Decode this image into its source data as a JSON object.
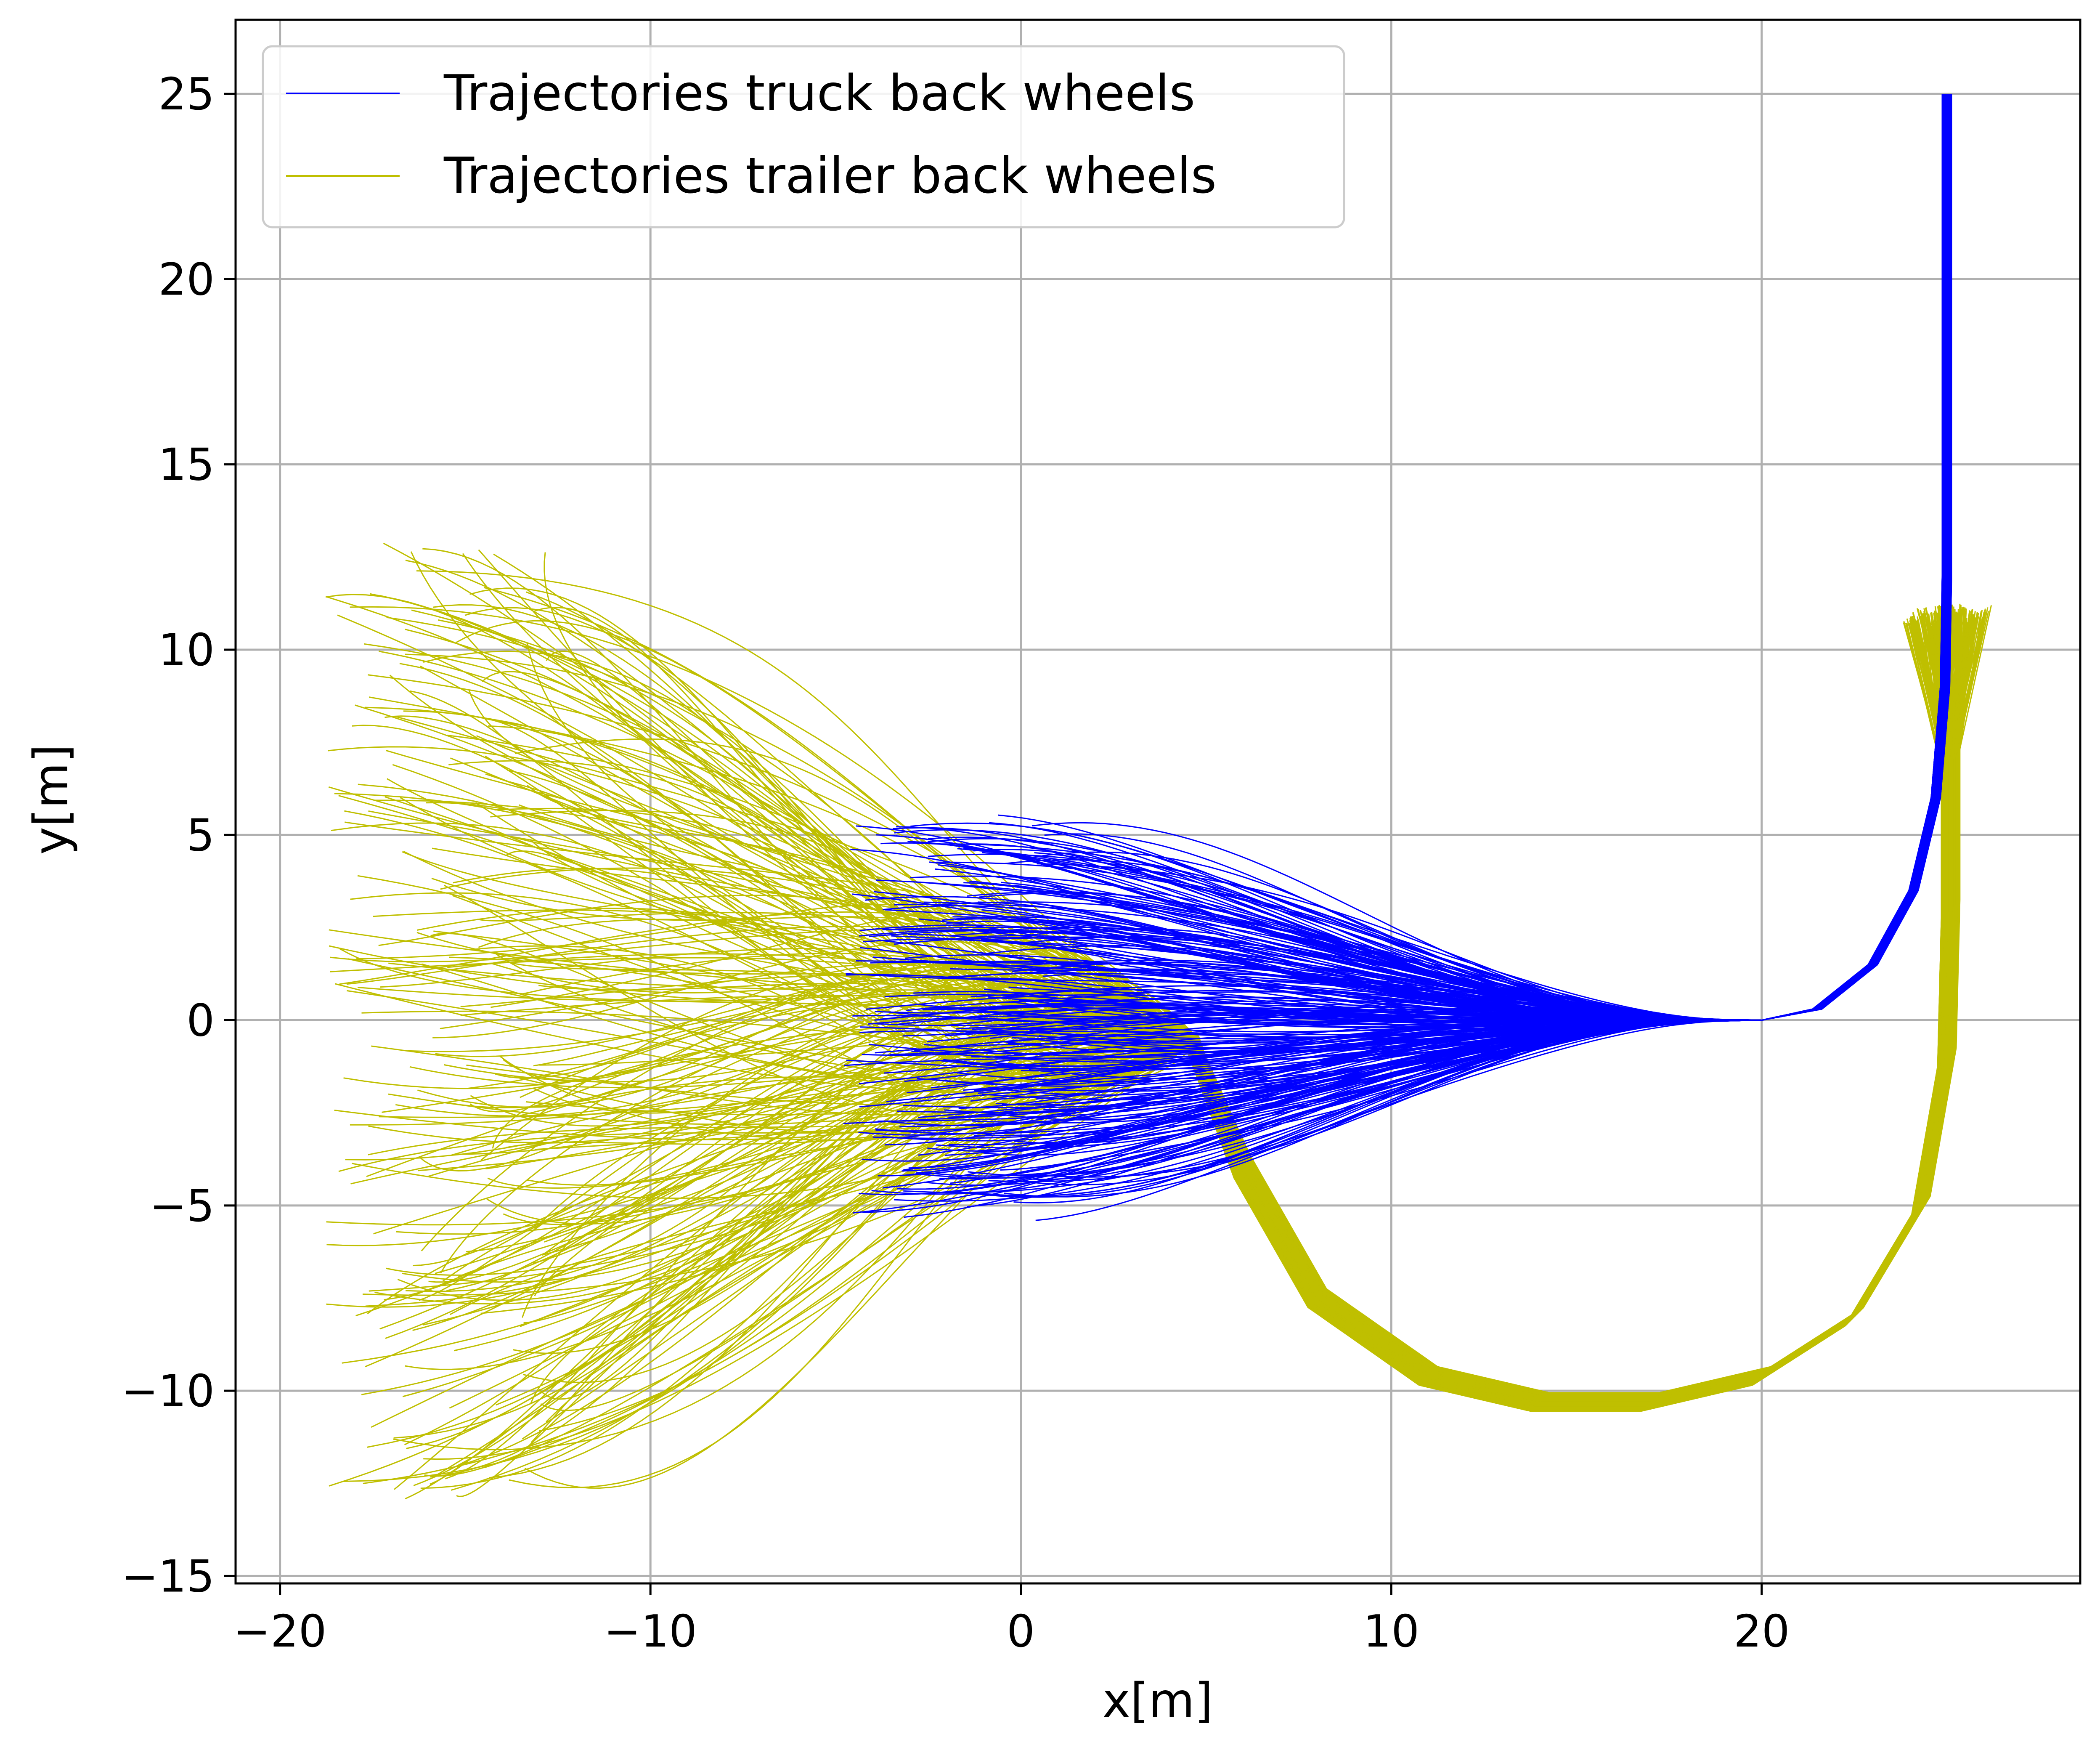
{
  "chart_data": {
    "type": "line",
    "title": "",
    "xlabel": "x[m]",
    "ylabel": "y[m]",
    "xlim": [
      -21.2,
      28.6
    ],
    "ylim": [
      -15.2,
      27.0
    ],
    "xticks": [
      -20,
      -10,
      0,
      10,
      20
    ],
    "yticks": [
      -15,
      -10,
      -5,
      0,
      5,
      10,
      15,
      20,
      25
    ],
    "xtick_labels": [
      "−20",
      "−10",
      "0",
      "10",
      "20"
    ],
    "ytick_labels": [
      "−15",
      "−10",
      "−5",
      "0",
      "5",
      "10",
      "15",
      "20",
      "25"
    ],
    "grid": true,
    "legend_position": "upper-left",
    "series": [
      {
        "name": "Trajectories truck back wheels",
        "color": "#0000ff",
        "description_points": {
          "start_x_range": [
            -5,
            1.5
          ],
          "start_y_range": [
            -5.5,
            5.5
          ],
          "converge_point": [
            20,
            0
          ],
          "end_point": [
            25,
            25
          ]
        }
      },
      {
        "name": "Trajectories trailer back wheels",
        "color": "#bfbf00",
        "description_points": {
          "start_x_range": [
            -19,
            0.5
          ],
          "start_y_range": [
            -13,
            13
          ],
          "converge_point": [
            4.5,
            -0.5
          ],
          "loop_bottom": [
            16,
            -10.5
          ],
          "end_point": [
            25,
            11
          ]
        }
      }
    ]
  }
}
